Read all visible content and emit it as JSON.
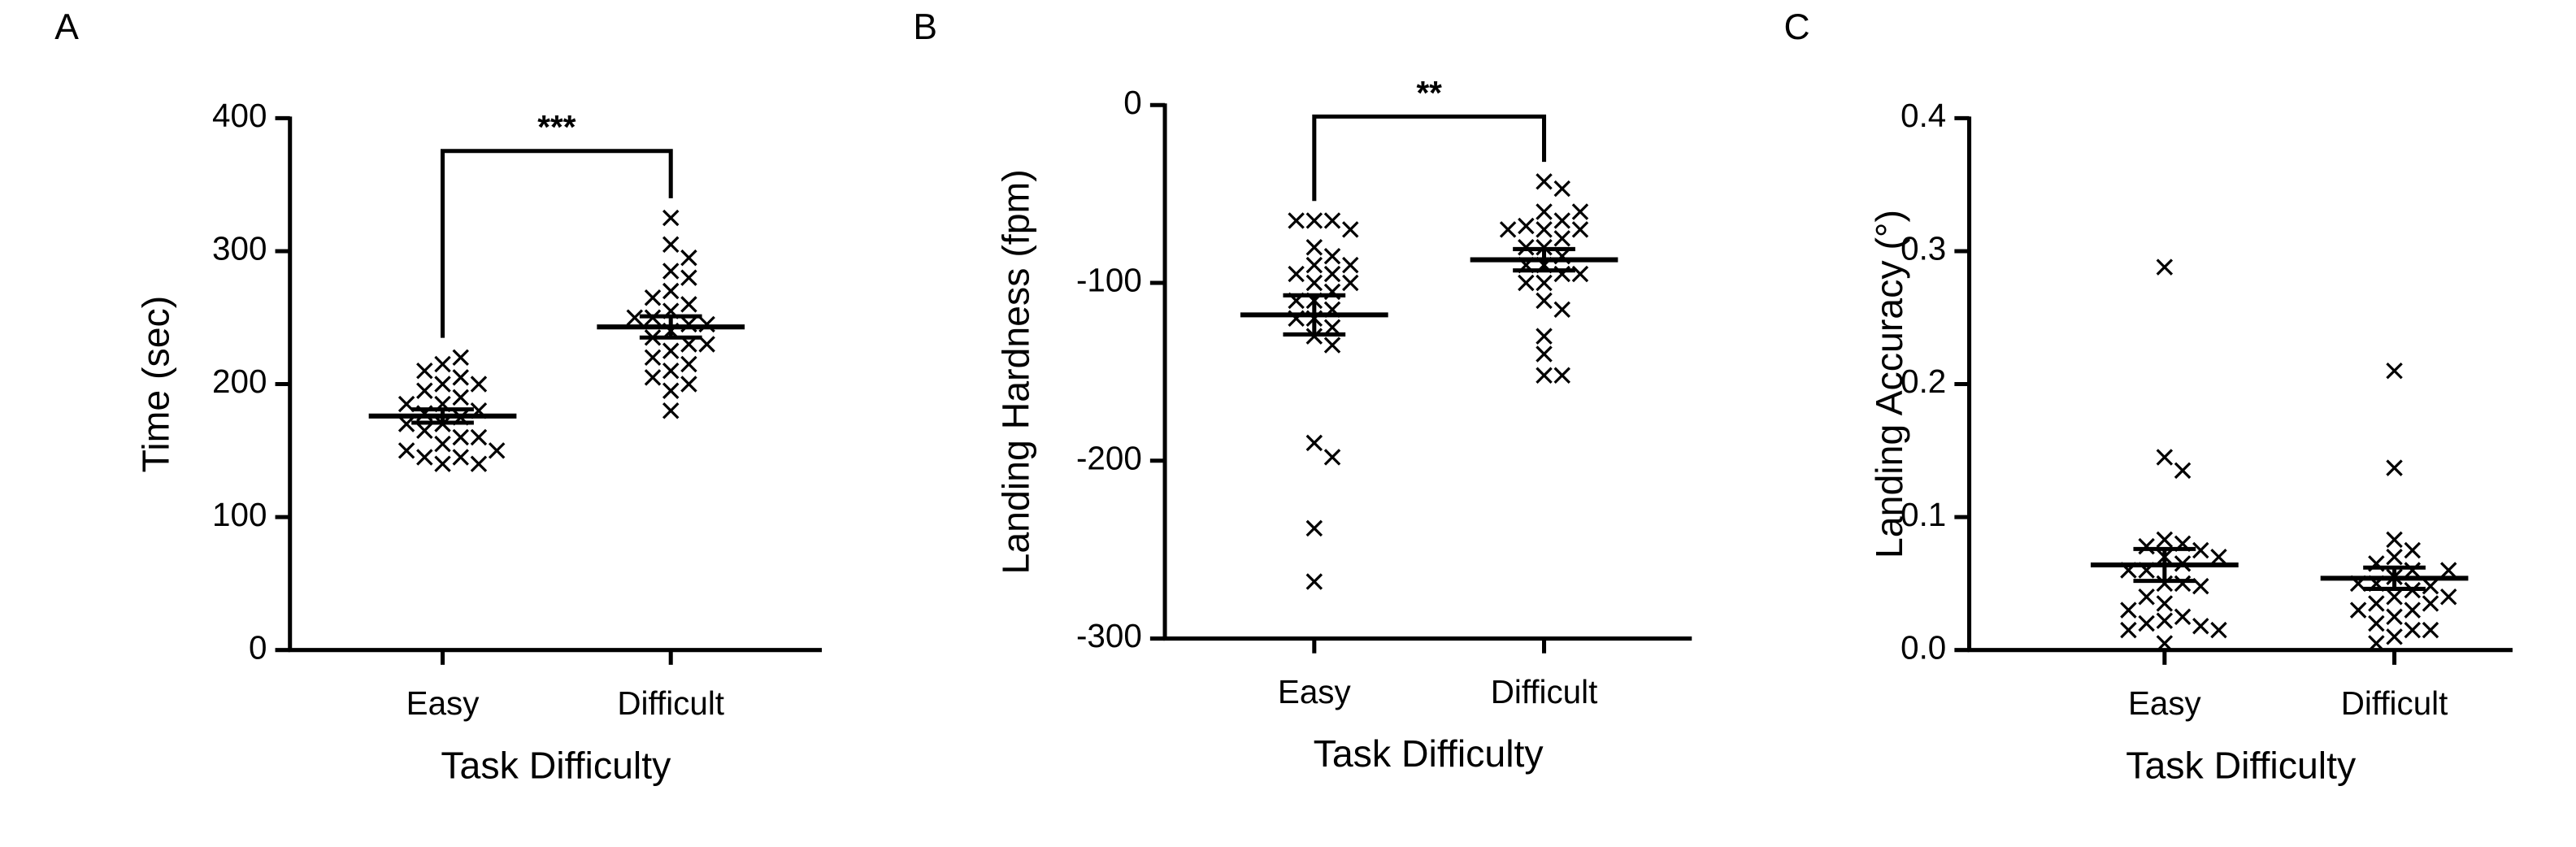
{
  "chart_data": [
    {
      "type": "strip",
      "panel": "A",
      "ylabel": "Time (sec)",
      "xlabel": "Task Difficulty",
      "categories": [
        "Easy",
        "Difficult"
      ],
      "values": [
        [
          140,
          145,
          145,
          140,
          150,
          155,
          160,
          165,
          170,
          175,
          178,
          180,
          185,
          190,
          195,
          200,
          205,
          210,
          215,
          220,
          170,
          160,
          185,
          200,
          150
        ],
        [
          180,
          195,
          200,
          205,
          210,
          215,
          220,
          225,
          230,
          235,
          240,
          245,
          250,
          255,
          260,
          265,
          270,
          280,
          285,
          295,
          305,
          325,
          230,
          245,
          250
        ]
      ],
      "means": [
        176,
        243
      ],
      "errors": [
        5,
        8
      ],
      "significance": "***",
      "ylim": [
        0,
        400
      ],
      "yticks": [
        0,
        100,
        200,
        300,
        400
      ],
      "color": "#000000"
    },
    {
      "type": "strip",
      "panel": "B",
      "ylabel": "Landing Hardness (fpm)",
      "xlabel": "Task Difficulty",
      "categories": [
        "Easy",
        "Difficult"
      ],
      "values": [
        [
          -65,
          -65,
          -65,
          -70,
          -80,
          -85,
          -90,
          -95,
          -95,
          -100,
          -105,
          -110,
          -115,
          -120,
          -125,
          -130,
          -135,
          -190,
          -198,
          -238,
          -268,
          -90,
          -100,
          -110,
          -120
        ],
        [
          -43,
          -47,
          -60,
          -65,
          -68,
          -70,
          -70,
          -75,
          -80,
          -85,
          -90,
          -95,
          -100,
          -110,
          -115,
          -130,
          -140,
          -152,
          -152,
          -60,
          -70,
          -80,
          -90,
          -100,
          -95
        ]
      ],
      "means": [
        -118,
        -87
      ],
      "errors": [
        11,
        6
      ],
      "significance": "**",
      "ylim": [
        -300,
        0
      ],
      "yticks": [
        -300,
        -200,
        -100,
        0
      ],
      "color": "#000000"
    },
    {
      "type": "strip",
      "panel": "C",
      "ylabel": "Landing Accuracy (°)",
      "xlabel": "Task Difficulty",
      "categories": [
        "Easy",
        "Difficult"
      ],
      "values": [
        [
          0.288,
          0.145,
          0.135,
          0.083,
          0.08,
          0.078,
          0.075,
          0.07,
          0.065,
          0.06,
          0.05,
          0.05,
          0.048,
          0.04,
          0.035,
          0.025,
          0.022,
          0.02,
          0.018,
          0.015,
          0.015,
          0.005,
          0.06,
          0.03,
          0.07
        ],
        [
          0.21,
          0.137,
          0.083,
          0.075,
          0.07,
          0.065,
          0.06,
          0.055,
          0.05,
          0.048,
          0.045,
          0.04,
          0.035,
          0.035,
          0.03,
          0.025,
          0.02,
          0.015,
          0.015,
          0.01,
          0.005,
          0.05,
          0.04,
          0.06,
          0.03
        ]
      ],
      "means": [
        0.064,
        0.054
      ],
      "errors": [
        0.012,
        0.008
      ],
      "ylim": [
        0,
        0.4
      ],
      "yticks": [
        {
          "value": 0,
          "label": "0.0"
        },
        0.1,
        0.2,
        0.3,
        0.4
      ],
      "color": "#000000"
    }
  ]
}
